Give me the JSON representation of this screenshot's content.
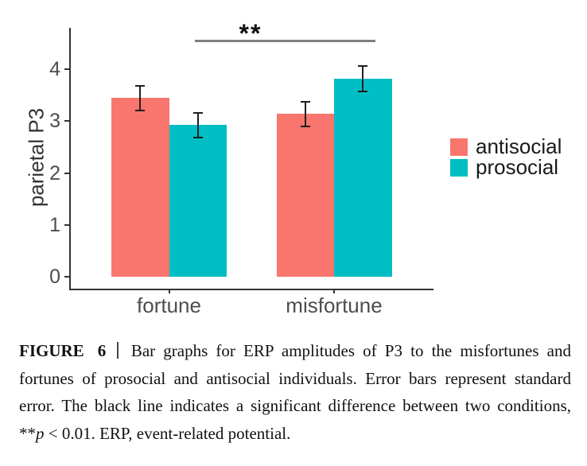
{
  "chart_data": {
    "type": "bar",
    "title": "",
    "xlabel": "",
    "ylabel": "parietal P3",
    "categories": [
      "fortune",
      "misfortune"
    ],
    "series": [
      {
        "name": "antisocial",
        "color": "#F8766D",
        "values": [
          3.45,
          3.14
        ],
        "errors": [
          0.24,
          0.25
        ]
      },
      {
        "name": "prosocial",
        "color": "#00BFC4",
        "values": [
          2.93,
          3.82
        ],
        "errors": [
          0.25,
          0.25
        ]
      }
    ],
    "ylim": [
      0,
      4.8
    ],
    "yticks": [
      0,
      1,
      2,
      3,
      4
    ],
    "grid": false,
    "legend_position": "right",
    "error_bars": "standard error",
    "significance": {
      "label": "**",
      "note": "p < 0.01",
      "between": [
        "fortune:prosocial",
        "misfortune:prosocial"
      ]
    }
  },
  "caption": {
    "label": "FIGURE 6",
    "separator": "|",
    "text_part1": "Bar graphs for ERP amplitudes of P3 to the misfortunes and fortunes of prosocial and antisocial individuals. Error bars represent standard error. The black line indicates a significant difference between two conditions, **",
    "p_italic": "p",
    "text_part2": " < 0.01. ERP, event-related potential."
  }
}
